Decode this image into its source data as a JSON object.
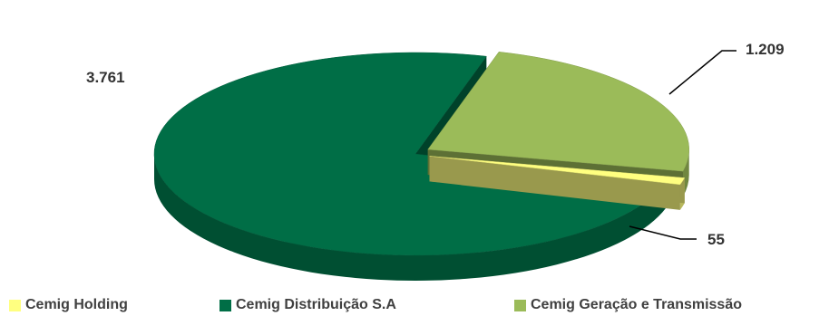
{
  "chart_data": {
    "type": "pie",
    "title": "",
    "series": [
      {
        "values": [
          55,
          3761,
          1209
        ],
        "data_labels": [
          "55",
          "3.761",
          "1.209"
        ]
      }
    ],
    "categories": [
      "Cemig Holding",
      "Cemig Distribuição S.A",
      "Cemig Geração e Transmissão"
    ],
    "colors": [
      "#ffff80",
      "#006e46",
      "#9bbb59"
    ],
    "style": "3d-exploded",
    "legend_position": "bottom"
  }
}
